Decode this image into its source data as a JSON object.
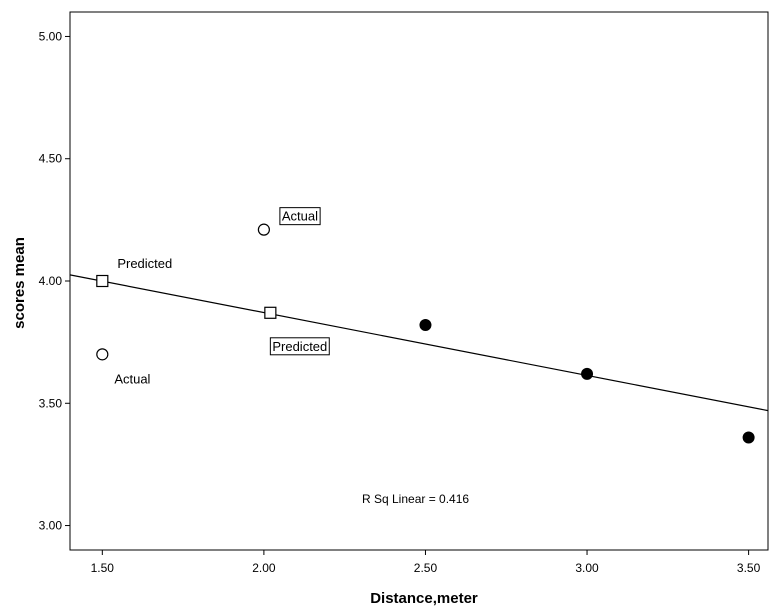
{
  "chart_data": {
    "type": "scatter",
    "title": "",
    "xlabel": "Distance,meter",
    "ylabel": "scores mean",
    "xlim": [
      1.4,
      3.56
    ],
    "ylim": [
      2.9,
      5.1
    ],
    "x_ticks": [
      "1.50",
      "2.00",
      "2.50",
      "3.00",
      "3.50"
    ],
    "y_ticks": [
      "3.00",
      "3.50",
      "4.00",
      "4.50",
      "5.00"
    ],
    "x_tick_values": [
      1.5,
      2.0,
      2.5,
      3.0,
      3.5
    ],
    "y_tick_values": [
      3.0,
      3.5,
      4.0,
      4.5,
      5.0
    ],
    "grid": false,
    "series": [
      {
        "marker": "filled-circle",
        "x": [
          2.5,
          3.0,
          3.5
        ],
        "y": [
          3.82,
          3.62,
          3.36
        ]
      },
      {
        "marker": "open-circle",
        "x": [
          1.5,
          2.0
        ],
        "y": [
          3.7,
          4.21
        ]
      },
      {
        "marker": "open-square",
        "x": [
          1.5,
          2.02
        ],
        "y": [
          4.0,
          3.87
        ]
      }
    ],
    "fit_line": {
      "x": [
        1.4,
        3.56
      ],
      "y": [
        4.025,
        3.47
      ]
    },
    "annotations": [
      {
        "text": "Predicted",
        "x": 1.5,
        "y": 4.0,
        "boxed": false
      },
      {
        "text": "Actual",
        "x": 1.5,
        "y": 3.7,
        "boxed": false
      },
      {
        "text": "Actual",
        "x": 2.0,
        "y": 4.21,
        "boxed": true
      },
      {
        "text": "Predicted",
        "x": 2.02,
        "y": 3.87,
        "boxed": true
      }
    ],
    "r_squared_label": "R Sq Linear = 0.416"
  }
}
